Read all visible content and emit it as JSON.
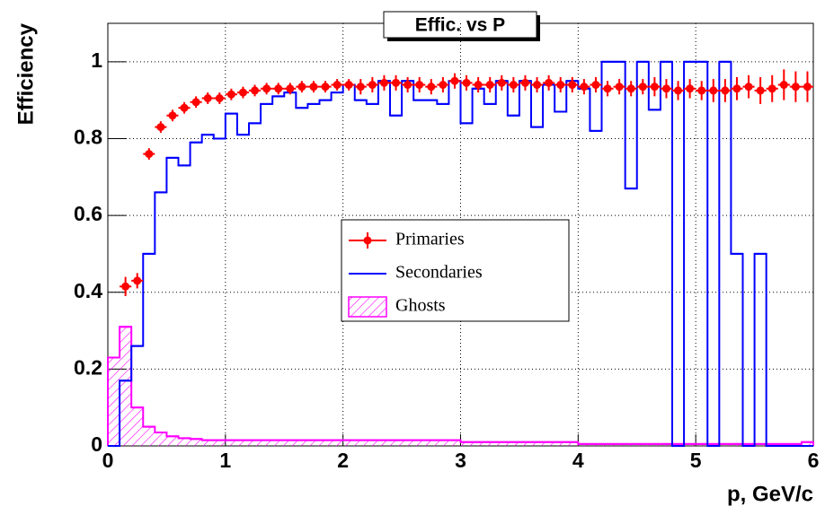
{
  "chart_data": {
    "type": "histogram",
    "title": "Effic. vs P",
    "x_label": "p, GeV/c",
    "y_label": "Efficiency",
    "xlim": [
      0,
      6
    ],
    "ylim": [
      0,
      1.1
    ],
    "xticks": [
      0,
      1,
      2,
      3,
      4,
      5,
      6
    ],
    "yticks": [
      0,
      0.2,
      0.4,
      0.6,
      0.8,
      1
    ],
    "grid": true,
    "legend": "center",
    "bins": [
      0,
      0.1,
      0.2,
      0.3,
      0.4,
      0.5,
      0.6,
      0.7,
      0.8,
      0.9,
      1,
      1.1,
      1.2,
      1.3,
      1.4,
      1.5,
      1.6,
      1.7,
      1.8,
      1.9,
      2,
      2.1,
      2.2,
      2.3,
      2.4,
      2.5,
      2.6,
      2.7,
      2.8,
      2.9,
      3,
      3.1,
      3.2,
      3.3,
      3.4,
      3.5,
      3.6,
      3.7,
      3.8,
      3.9,
      4,
      4.1,
      4.2,
      4.3,
      4.4,
      4.5,
      4.6,
      4.7,
      4.8,
      4.9,
      5,
      5.1,
      5.2,
      5.3,
      5.4,
      5.5,
      5.6,
      5.7,
      5.8,
      5.9,
      6
    ],
    "series": [
      {
        "name": "Primaries",
        "color": "#ff0000",
        "style": "points",
        "x": [
          0.15,
          0.25,
          0.35,
          0.45,
          0.55,
          0.65,
          0.75,
          0.85,
          0.95,
          1.05,
          1.15,
          1.25,
          1.35,
          1.45,
          1.55,
          1.65,
          1.75,
          1.85,
          1.95,
          2.05,
          2.15,
          2.25,
          2.35,
          2.45,
          2.55,
          2.65,
          2.75,
          2.85,
          2.95,
          3.05,
          3.15,
          3.25,
          3.35,
          3.45,
          3.55,
          3.65,
          3.75,
          3.85,
          3.95,
          4.05,
          4.15,
          4.25,
          4.35,
          4.45,
          4.55,
          4.65,
          4.75,
          4.85,
          4.95,
          5.05,
          5.15,
          5.25,
          5.35,
          5.45,
          5.55,
          5.65,
          5.75,
          5.85,
          5.95
        ],
        "values": [
          0.415,
          0.43,
          0.76,
          0.83,
          0.86,
          0.88,
          0.895,
          0.905,
          0.905,
          0.915,
          0.92,
          0.925,
          0.93,
          0.93,
          0.93,
          0.935,
          0.935,
          0.935,
          0.94,
          0.94,
          0.935,
          0.94,
          0.945,
          0.945,
          0.94,
          0.94,
          0.935,
          0.94,
          0.95,
          0.945,
          0.94,
          0.94,
          0.945,
          0.94,
          0.945,
          0.94,
          0.945,
          0.94,
          0.94,
          0.935,
          0.94,
          0.93,
          0.935,
          0.93,
          0.935,
          0.935,
          0.93,
          0.925,
          0.93,
          0.925,
          0.925,
          0.925,
          0.93,
          0.935,
          0.925,
          0.93,
          0.94,
          0.935,
          0.935
        ],
        "errors": [
          0.025,
          0.02,
          0.015,
          0.015,
          0.015,
          0.015,
          0.015,
          0.015,
          0.015,
          0.015,
          0.015,
          0.015,
          0.015,
          0.015,
          0.015,
          0.015,
          0.015,
          0.015,
          0.015,
          0.015,
          0.02,
          0.02,
          0.02,
          0.02,
          0.02,
          0.02,
          0.02,
          0.02,
          0.02,
          0.02,
          0.02,
          0.02,
          0.02,
          0.02,
          0.02,
          0.02,
          0.02,
          0.02,
          0.02,
          0.02,
          0.02,
          0.02,
          0.02,
          0.02,
          0.02,
          0.025,
          0.025,
          0.025,
          0.025,
          0.025,
          0.03,
          0.03,
          0.03,
          0.03,
          0.035,
          0.035,
          0.04,
          0.04,
          0.04
        ]
      },
      {
        "name": "Secondaries",
        "color": "#0000ff",
        "style": "step",
        "values": [
          0,
          0.17,
          0.26,
          0.5,
          0.66,
          0.75,
          0.73,
          0.79,
          0.81,
          0.8,
          0.865,
          0.81,
          0.84,
          0.89,
          0.91,
          0.92,
          0.88,
          0.89,
          0.9,
          0.92,
          0.94,
          0.9,
          0.89,
          0.95,
          0.86,
          0.95,
          0.9,
          0.9,
          0.89,
          0.95,
          0.84,
          0.93,
          0.89,
          0.95,
          0.86,
          0.95,
          0.83,
          0.94,
          0.87,
          0.95,
          0.93,
          0.82,
          1,
          1,
          0.67,
          1,
          0.875,
          1,
          0,
          1,
          1,
          0,
          1,
          0.5,
          0,
          0.5,
          0,
          0,
          0,
          0
        ]
      },
      {
        "name": "Ghosts",
        "color": "#ff00ff",
        "style": "hatched",
        "values": [
          0.23,
          0.31,
          0.1,
          0.05,
          0.035,
          0.025,
          0.02,
          0.018,
          0.015,
          0.015,
          0.015,
          0.015,
          0.015,
          0.015,
          0.015,
          0.015,
          0.015,
          0.015,
          0.015,
          0.015,
          0.015,
          0.015,
          0.015,
          0.015,
          0.015,
          0.015,
          0.015,
          0.015,
          0.015,
          0.015,
          0.01,
          0.01,
          0.01,
          0.01,
          0.01,
          0.01,
          0.01,
          0.01,
          0.01,
          0.01,
          0.005,
          0.005,
          0.005,
          0.005,
          0.005,
          0.005,
          0.005,
          0.005,
          0.005,
          0.005,
          0.005,
          0.005,
          0.005,
          0.005,
          0.005,
          0.005,
          0.005,
          0.005,
          0.005,
          0.01
        ]
      }
    ]
  }
}
